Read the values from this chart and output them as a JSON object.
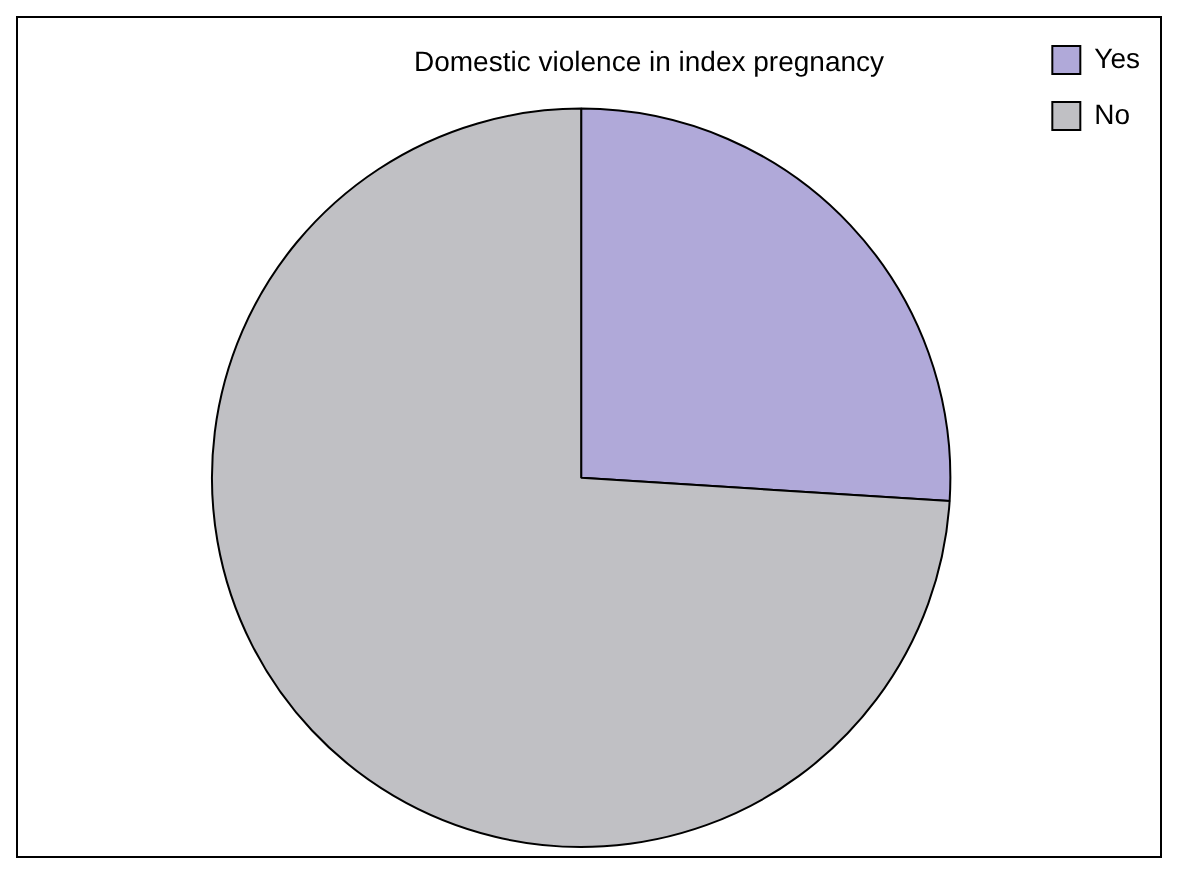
{
  "chart_data": {
    "type": "pie",
    "title": "Domestic violence in index pregnancy",
    "categories": [
      "Yes",
      "No"
    ],
    "values": [
      26,
      74
    ],
    "colors": [
      "#b0a9d9",
      "#c0c0c4"
    ],
    "legend": "top right"
  }
}
